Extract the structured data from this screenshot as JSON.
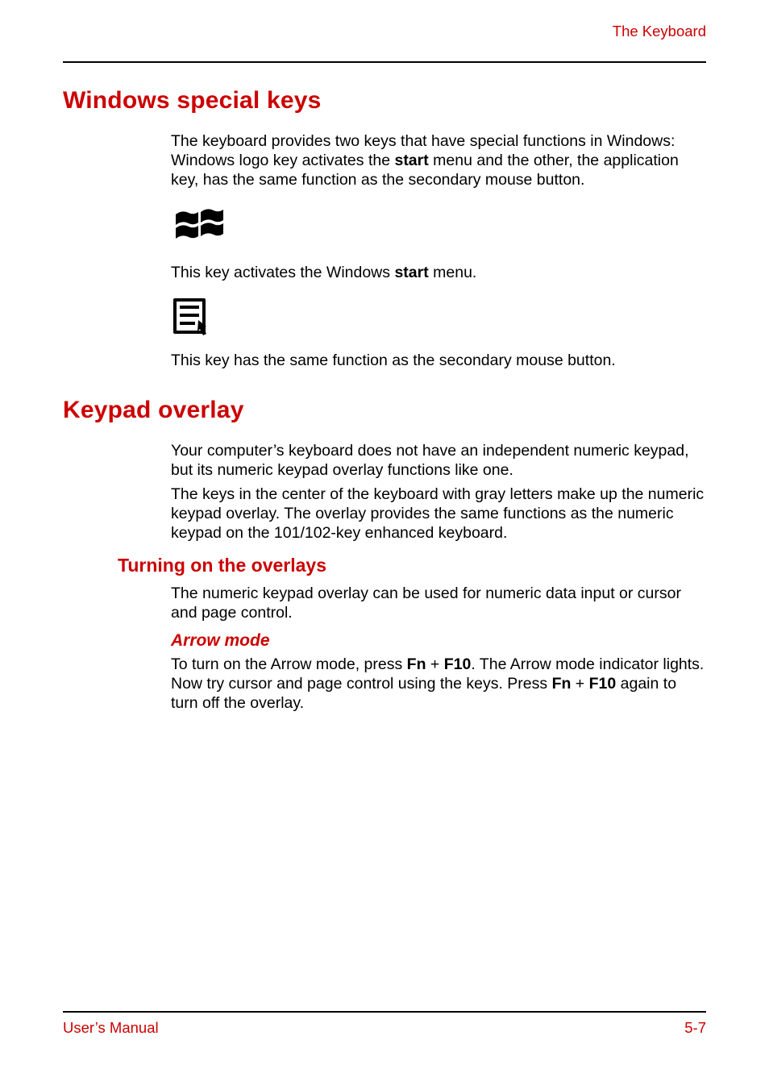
{
  "colors": {
    "accent": "#cc0000",
    "text": "#000000",
    "rule": "#000000",
    "background": "#ffffff"
  },
  "typography": {
    "body_font": "Arial",
    "body_size_pt": 15,
    "h1_size_pt": 22,
    "h2_size_pt": 17,
    "h3_size_pt": 16
  },
  "header": {
    "title": "The Keyboard"
  },
  "sections": [
    {
      "heading": "Windows special keys",
      "paragraphs": [
        {
          "runs": [
            {
              "t": "The keyboard provides two keys that have special functions in Windows: Windows logo key activates the "
            },
            {
              "t": "start",
              "bold": true
            },
            {
              "t": " menu and the other, the application key, has the same function as the secondary mouse button."
            }
          ]
        }
      ],
      "icons": [
        {
          "name": "windows-logo-icon",
          "caption_runs": [
            {
              "t": "This key activates the Windows "
            },
            {
              "t": "start",
              "bold": true
            },
            {
              "t": " menu."
            }
          ]
        },
        {
          "name": "application-key-icon",
          "caption_runs": [
            {
              "t": "This key has the same function as the secondary mouse button."
            }
          ]
        }
      ]
    },
    {
      "heading": "Keypad overlay",
      "paragraphs": [
        {
          "runs": [
            {
              "t": "Your computer’s keyboard does not have an independent numeric keypad, but its numeric keypad overlay functions like one."
            }
          ]
        },
        {
          "runs": [
            {
              "t": "The keys in the center of the keyboard with gray letters make up the numeric keypad overlay. The overlay provides the same functions as the numeric keypad on the 101/102-key enhanced keyboard."
            }
          ]
        }
      ],
      "subsections": [
        {
          "heading": "Turning on the overlays",
          "paragraphs": [
            {
              "runs": [
                {
                  "t": "The numeric keypad overlay can be used for numeric data input or cursor and page control."
                }
              ]
            }
          ],
          "subsubsections": [
            {
              "heading": "Arrow mode",
              "paragraphs": [
                {
                  "runs": [
                    {
                      "t": "To turn on the Arrow mode, press "
                    },
                    {
                      "t": "Fn",
                      "bold": true
                    },
                    {
                      "t": " + "
                    },
                    {
                      "t": "F10",
                      "bold": true
                    },
                    {
                      "t": ". The Arrow mode indicator lights. Now try cursor and page control using the keys. Press "
                    },
                    {
                      "t": "Fn",
                      "bold": true
                    },
                    {
                      "t": " + "
                    },
                    {
                      "t": "F10",
                      "bold": true
                    },
                    {
                      "t": " again to turn off the overlay."
                    }
                  ]
                }
              ]
            }
          ]
        }
      ]
    }
  ],
  "footer": {
    "left": "User’s Manual",
    "right": "5-7"
  }
}
